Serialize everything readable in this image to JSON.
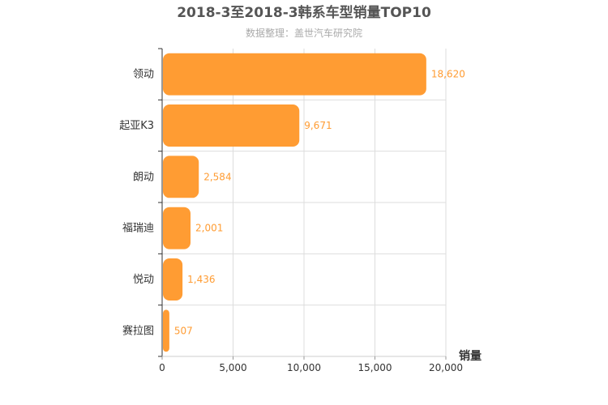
{
  "chart_data": {
    "type": "bar",
    "orientation": "horizontal",
    "title": "2018-3至2018-3韩系车型销量TOP10",
    "subtitle": "数据整理：盖世汽车研究院",
    "xlabel": "销量",
    "ylabel": "",
    "categories": [
      "领动",
      "起亚K3",
      "朗动",
      "福瑞迪",
      "悦动",
      "赛拉图"
    ],
    "values": [
      18620,
      9671,
      2584,
      2001,
      1436,
      507
    ],
    "value_labels": [
      "18,620",
      "9,671",
      "2,584",
      "2,001",
      "1,436",
      "507"
    ],
    "xlim": [
      0,
      20000
    ],
    "xticks": [
      0,
      5000,
      10000,
      15000,
      20000
    ],
    "xtick_labels": [
      "0",
      "5,000",
      "10,000",
      "15,000",
      "20,000"
    ],
    "grid": true,
    "legend": "none",
    "bar_color": "#ff9c33",
    "label_color": "#ff9c33"
  }
}
